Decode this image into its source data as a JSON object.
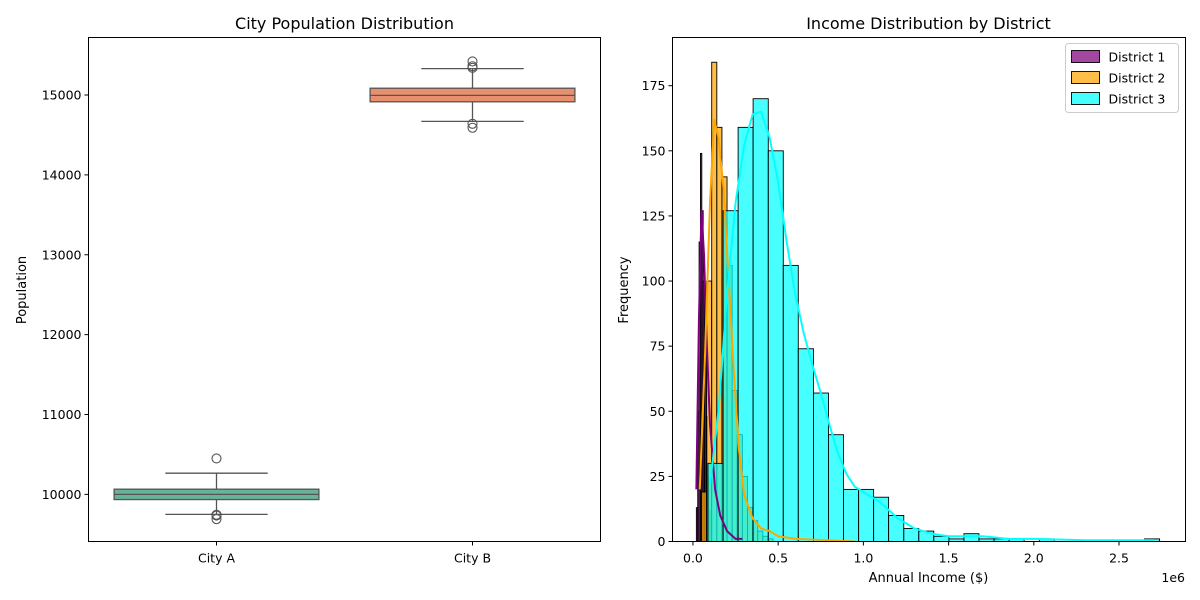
{
  "chart_data": [
    {
      "type": "box",
      "title": "City Population Distribution",
      "xlabel": "",
      "ylabel": "Population",
      "ylim": [
        9410,
        15720
      ],
      "yticks": [
        "10000",
        "11000",
        "12000",
        "13000",
        "14000",
        "15000"
      ],
      "grid": false,
      "categories": [
        "City A",
        "City B"
      ],
      "colors": [
        "#66b39a",
        "#e8906e"
      ],
      "boxes": [
        {
          "name": "City A",
          "whisker_low": 9750,
          "q1": 9935,
          "median": 10000,
          "q3": 10065,
          "whisker_high": 10265,
          "outliers": [
            10450,
            9745,
            9740,
            9735,
            9690
          ]
        },
        {
          "name": "City B",
          "whisker_low": 14670,
          "q1": 14915,
          "median": 14995,
          "q3": 15085,
          "whisker_high": 15330,
          "outliers": [
            15420,
            15360,
            15340,
            14640,
            14590
          ]
        }
      ]
    },
    {
      "type": "histogram",
      "title": "Income Distribution by District",
      "xlabel": "Annual Income ($)",
      "ylabel": "Frequency",
      "x_scale_label": "1e6",
      "xlim": [
        -0.12,
        2.89
      ],
      "ylim": [
        0,
        193.5
      ],
      "xticks": [
        "0.0",
        "0.5",
        "1.0",
        "1.5",
        "2.0",
        "2.5"
      ],
      "yticks": [
        "0",
        "25",
        "50",
        "75",
        "100",
        "125",
        "150",
        "175"
      ],
      "grid": false,
      "legend_position": "top-right",
      "series": [
        {
          "name": "District 1",
          "color": "#800080",
          "bins": [
            [
              0.02,
              0.028,
              13
            ],
            [
              0.028,
              0.036,
              50
            ],
            [
              0.036,
              0.044,
              115
            ],
            [
              0.044,
              0.052,
              149
            ],
            [
              0.052,
              0.06,
              127
            ],
            [
              0.06,
              0.068,
              100
            ],
            [
              0.068,
              0.076,
              75
            ],
            [
              0.076,
              0.084,
              48
            ],
            [
              0.084,
              0.092,
              25
            ],
            [
              0.092,
              0.1,
              12
            ]
          ],
          "kde": [
            [
              0.02,
              20
            ],
            [
              0.035,
              85
            ],
            [
              0.05,
              127
            ],
            [
              0.065,
              110
            ],
            [
              0.08,
              78
            ],
            [
              0.1,
              45
            ],
            [
              0.13,
              20
            ],
            [
              0.16,
              10
            ],
            [
              0.2,
              4
            ],
            [
              0.25,
              1
            ],
            [
              0.29,
              1
            ]
          ]
        },
        {
          "name": "District 2",
          "color": "#ffa500",
          "bins": [
            [
              0.05,
              0.08,
              19
            ],
            [
              0.08,
              0.11,
              100
            ],
            [
              0.11,
              0.14,
              184
            ],
            [
              0.14,
              0.17,
              159
            ],
            [
              0.17,
              0.2,
              140
            ],
            [
              0.2,
              0.23,
              106
            ],
            [
              0.23,
              0.26,
              58
            ],
            [
              0.26,
              0.29,
              41
            ],
            [
              0.29,
              0.32,
              25
            ],
            [
              0.32,
              0.35,
              13
            ],
            [
              0.35,
              0.38,
              8
            ],
            [
              0.38,
              0.41,
              4
            ],
            [
              0.41,
              0.44,
              2
            ],
            [
              0.44,
              0.47,
              1
            ]
          ],
          "kde": [
            [
              0.04,
              20
            ],
            [
              0.07,
              70
            ],
            [
              0.1,
              130
            ],
            [
              0.125,
              162
            ],
            [
              0.15,
              155
            ],
            [
              0.18,
              135
            ],
            [
              0.21,
              100
            ],
            [
              0.24,
              65
            ],
            [
              0.27,
              35
            ],
            [
              0.3,
              18
            ],
            [
              0.35,
              9
            ],
            [
              0.4,
              5
            ],
            [
              0.45,
              4
            ],
            [
              0.5,
              2
            ],
            [
              0.6,
              1
            ],
            [
              0.8,
              0.5
            ],
            [
              0.95,
              0
            ]
          ]
        },
        {
          "name": "District 3",
          "color": "#00ffff",
          "bins": [
            [
              0.088,
              0.177,
              30
            ],
            [
              0.177,
              0.265,
              127
            ],
            [
              0.265,
              0.353,
              159
            ],
            [
              0.353,
              0.442,
              170
            ],
            [
              0.442,
              0.53,
              150
            ],
            [
              0.53,
              0.618,
              106
            ],
            [
              0.618,
              0.707,
              74
            ],
            [
              0.707,
              0.795,
              57
            ],
            [
              0.795,
              0.883,
              41
            ],
            [
              0.883,
              0.972,
              20
            ],
            [
              0.972,
              1.06,
              20
            ],
            [
              1.06,
              1.148,
              17
            ],
            [
              1.148,
              1.237,
              10
            ],
            [
              1.237,
              1.325,
              5
            ],
            [
              1.325,
              1.413,
              4
            ],
            [
              1.413,
              1.502,
              2
            ],
            [
              1.502,
              1.59,
              1
            ],
            [
              1.59,
              1.678,
              3
            ],
            [
              1.678,
              1.767,
              1
            ],
            [
              1.767,
              1.855,
              1
            ],
            [
              1.855,
              1.943,
              1
            ],
            [
              2.032,
              2.12,
              1
            ],
            [
              2.65,
              2.738,
              1
            ]
          ],
          "kde": [
            [
              0.1,
              22
            ],
            [
              0.15,
              50
            ],
            [
              0.2,
              95
            ],
            [
              0.25,
              130
            ],
            [
              0.3,
              152
            ],
            [
              0.35,
              164
            ],
            [
              0.4,
              165
            ],
            [
              0.45,
              155
            ],
            [
              0.5,
              138
            ],
            [
              0.55,
              115
            ],
            [
              0.6,
              95
            ],
            [
              0.65,
              80
            ],
            [
              0.7,
              68
            ],
            [
              0.75,
              57
            ],
            [
              0.8,
              45
            ],
            [
              0.85,
              34
            ],
            [
              0.9,
              26
            ],
            [
              0.95,
              21
            ],
            [
              1.0,
              19
            ],
            [
              1.05,
              17
            ],
            [
              1.1,
              15
            ],
            [
              1.15,
              12
            ],
            [
              1.2,
              9
            ],
            [
              1.25,
              7
            ],
            [
              1.3,
              5
            ],
            [
              1.4,
              3
            ],
            [
              1.5,
              2
            ],
            [
              1.6,
              2
            ],
            [
              1.7,
              2
            ],
            [
              1.85,
              1
            ],
            [
              2.0,
              1
            ],
            [
              2.3,
              0.5
            ],
            [
              2.7,
              0.5
            ]
          ]
        }
      ]
    }
  ]
}
